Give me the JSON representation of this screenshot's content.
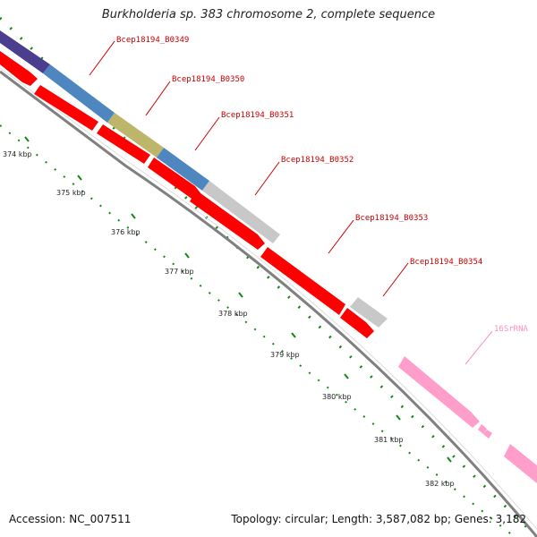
{
  "map": {
    "title": "Burkholderia sp. 383 chromosome 2, complete sequence",
    "accession": "Accession: NC_007511",
    "topology": "Topology: circular; Length: 3,587,082 bp; Genes: 3,182",
    "colors": {
      "background": "#ffffff",
      "backbone": "#808080",
      "cds": "#ff0000",
      "tick": "#118811",
      "gene_label": "#cc0000",
      "rna": "#ff9ecb",
      "rna_label": "#ff8fbf",
      "cog_purple": "#4b3e8f",
      "cog_blue": "#4e86bf",
      "cog_olive": "#bdb56a",
      "cog_grey": "#c8c8c8"
    }
  },
  "scale": {
    "unit": "kbp",
    "ticks": [
      "374 kbp",
      "375 kbp",
      "376 kbp",
      "377 kbp",
      "378 kbp",
      "379 kbp",
      "380 kbp",
      "381 kbp",
      "382 kbp"
    ]
  },
  "features": {
    "labels": [
      {
        "name": "Bcep18194_B0349",
        "type": "gene"
      },
      {
        "name": "Bcep18194_B0350",
        "type": "gene"
      },
      {
        "name": "Bcep18194_B0351",
        "type": "gene"
      },
      {
        "name": "Bcep18194_B0352",
        "type": "gene"
      },
      {
        "name": "Bcep18194_B0353",
        "type": "gene"
      },
      {
        "name": "Bcep18194_B0354",
        "type": "gene"
      },
      {
        "name": "16SrRNA",
        "type": "rna"
      }
    ]
  }
}
